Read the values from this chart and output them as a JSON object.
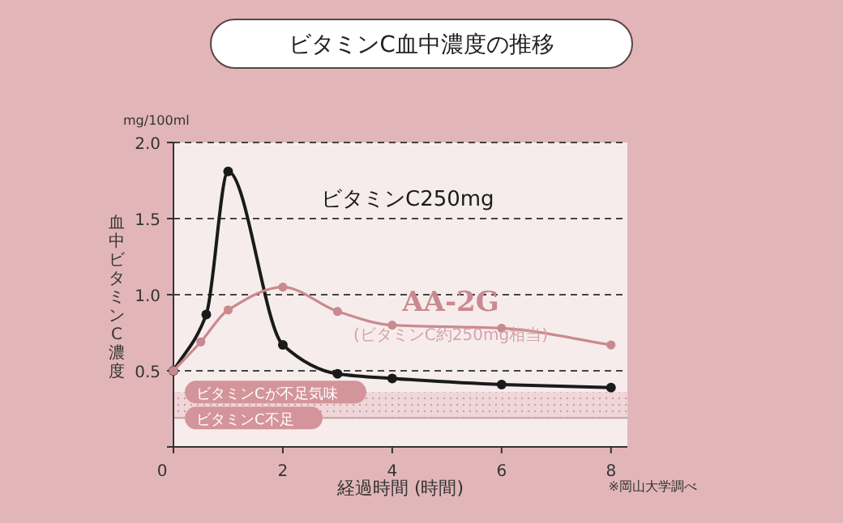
{
  "chart_data": {
    "type": "line",
    "title": "ビタミンC血中濃度の推移",
    "xlabel": "経過時間 (時間)",
    "ylabel": "血中ビタミンC濃度",
    "annotations": [
      "mg/100ml",
      "(ビタミンC約250mg相当)",
      "※岡山大学調べ"
    ],
    "series": [
      {
        "name": "ビタミンC250mg",
        "color": "#1a1a1a",
        "x": [
          0,
          0.6,
          1,
          2,
          3,
          4,
          6,
          8
        ],
        "values": [
          0.5,
          0.87,
          1.81,
          0.67,
          0.48,
          0.45,
          0.41,
          0.39
        ]
      },
      {
        "name": "AA-2G",
        "color": "#c98a8f",
        "x": [
          0,
          0.5,
          1,
          2,
          3,
          4,
          6,
          8
        ],
        "values": [
          0.5,
          0.69,
          0.9,
          1.05,
          0.89,
          0.8,
          0.78,
          0.67
        ]
      }
    ],
    "xlim": [
      0,
      8.3
    ],
    "ylim": [
      0,
      2
    ],
    "xticks": [
      0,
      2,
      4,
      6,
      8
    ],
    "yticks": [
      {
        "value": 0,
        "label": null
      },
      {
        "value": 0.5,
        "label": "0.5"
      },
      {
        "value": 1,
        "label": "1.0"
      },
      {
        "value": 1.5,
        "label": "1.5"
      },
      {
        "value": 2,
        "label": "2.0"
      }
    ],
    "grid": "y",
    "marker": "circle",
    "bands": [
      {
        "axis": "y",
        "from": 0.19,
        "to": 0.36,
        "label": "ビタミンCが不足気味",
        "color": "#efd6d8"
      }
    ],
    "ref_lines": [
      {
        "axis": "y",
        "value": 0.19,
        "label": "ビタミンC不足",
        "color": "#c9a3a6"
      }
    ]
  }
}
